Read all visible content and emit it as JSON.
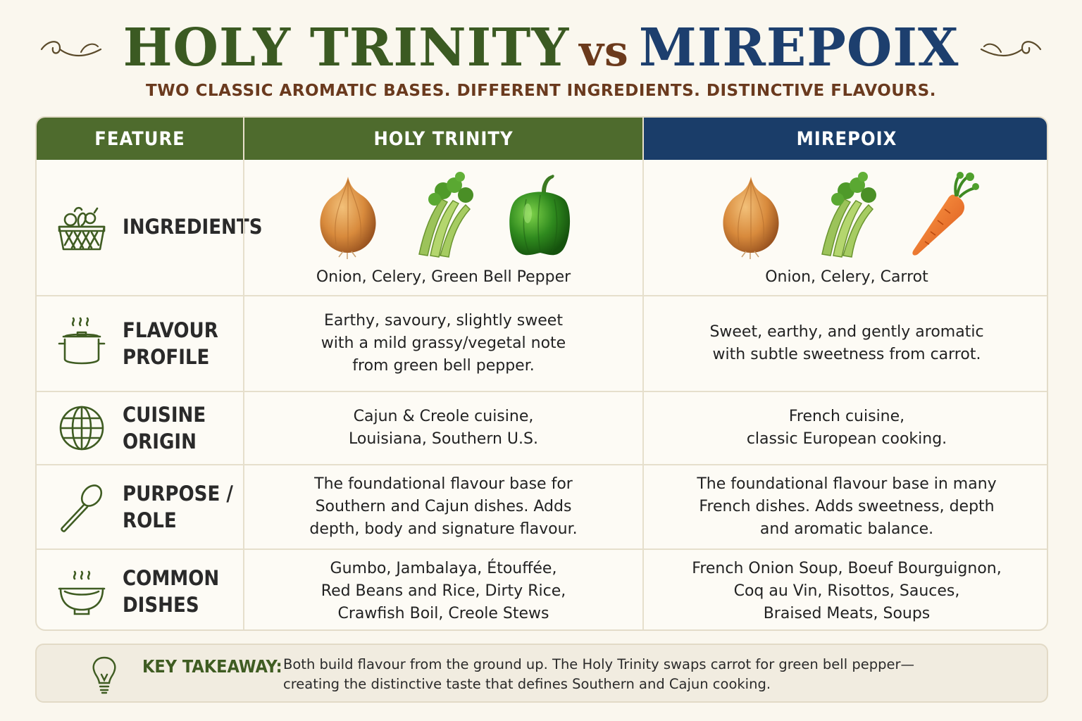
{
  "header": {
    "title_part1": "HOLY TRINITY",
    "title_vs": "vs",
    "title_part2": "MIREPOIX",
    "subtitle": "TWO CLASSIC AROMATIC BASES. DIFFERENT INGREDIENTS. DISTINCTIVE FLAVOURS."
  },
  "colors": {
    "green": "#4e6b2d",
    "blue": "#1a3d69",
    "brown": "#6a3a1e",
    "background": "#faf7ee"
  },
  "table": {
    "headers": [
      "FEATURE",
      "HOLY TRINITY",
      "MIREPOIX"
    ],
    "rows": [
      {
        "icon": "basket-icon",
        "feature": "INGREDIENTS",
        "trinity": "Onion, Celery, Green Bell Pepper",
        "mirepoix": "Onion, Celery, Carrot",
        "trinity_images": [
          "onion-icon",
          "celery-icon",
          "green-bell-pepper-icon"
        ],
        "mirepoix_images": [
          "onion-icon",
          "celery-icon",
          "carrot-icon"
        ]
      },
      {
        "icon": "pot-icon",
        "feature": "FLAVOUR\nPROFILE",
        "trinity": "Earthy, savoury, slightly sweet\nwith a mild grassy/vegetal note\nfrom green bell pepper.",
        "mirepoix": "Sweet, earthy, and gently aromatic\nwith subtle sweetness from carrot."
      },
      {
        "icon": "globe-icon",
        "feature": "CUISINE\nORIGIN",
        "trinity": "Cajun & Creole cuisine,\nLouisiana, Southern U.S.",
        "mirepoix": "French cuisine,\nclassic European cooking."
      },
      {
        "icon": "spoon-icon",
        "feature": "PURPOSE /\nROLE",
        "trinity": "The foundational flavour base for\nSouthern and Cajun dishes. Adds\ndepth, body and signature flavour.",
        "mirepoix": "The foundational flavour base in many\nFrench dishes. Adds sweetness, depth\nand aromatic balance."
      },
      {
        "icon": "bowl-icon",
        "feature": "COMMON\nDISHES",
        "trinity": "Gumbo, Jambalaya, Étouffée,\nRed Beans and Rice, Dirty Rice,\nCrawfish Boil, Creole Stews",
        "mirepoix": "French Onion Soup, Boeuf Bourguignon,\nCoq au Vin, Risottos, Sauces,\nBraised Meats, Soups"
      }
    ]
  },
  "takeaway": {
    "icon": "lightbulb-icon",
    "label": "KEY TAKEAWAY:",
    "text": "Both build flavour from the ground up. The Holy Trinity swaps carrot for green bell pepper—\ncreating the distinctive taste that defines Southern and Cajun cooking."
  }
}
